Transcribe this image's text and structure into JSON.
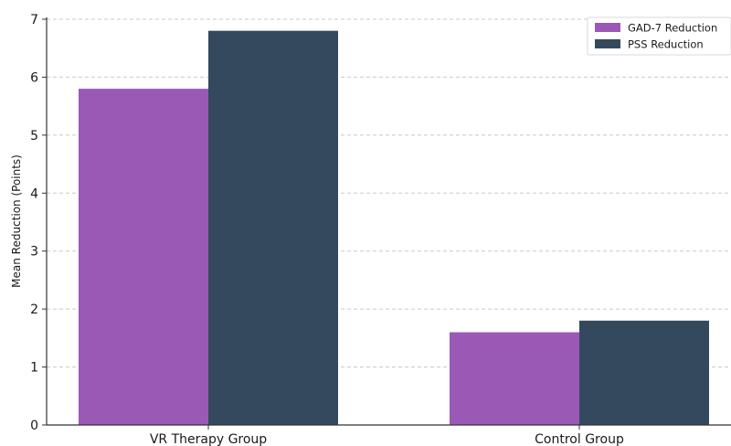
{
  "chart_data": {
    "type": "bar",
    "categories": [
      "VR Therapy Group",
      "Control Group"
    ],
    "series": [
      {
        "name": "GAD-7 Reduction",
        "values": [
          5.8,
          1.6
        ],
        "color": "#9b59b6"
      },
      {
        "name": "PSS Reduction",
        "values": [
          6.8,
          1.8
        ],
        "color": "#34495e"
      }
    ],
    "ylabel": "Mean Reduction (Points)",
    "xlabel": "",
    "ylim": [
      0,
      7
    ],
    "yticks": [
      0,
      1,
      2,
      3,
      4,
      5,
      6,
      7
    ],
    "grid": "y-dashed",
    "legend_position": "top-right"
  }
}
